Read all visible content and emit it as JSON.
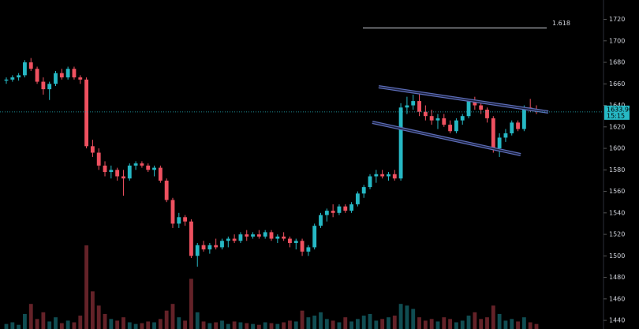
{
  "chart_data": {
    "type": "candlestick",
    "open": [
      1663,
      1664,
      1666,
      1668,
      1680,
      1674,
      1662,
      1655,
      1660,
      1670,
      1666,
      1674,
      1666,
      1664,
      1602,
      1596,
      1584,
      1578,
      1580,
      1574,
      1572,
      1584,
      1586,
      1584,
      1580,
      1582,
      1570,
      1552,
      1530,
      1536,
      1532,
      1500,
      1510,
      1506,
      1510,
      1508,
      1514,
      1516,
      1514,
      1520,
      1518,
      1520,
      1518,
      1522,
      1516,
      1518,
      1516,
      1512,
      1514,
      1504,
      1508,
      1528,
      1538,
      1542,
      1540,
      1546,
      1542,
      1548,
      1558,
      1564,
      1574,
      1576,
      1574,
      1576,
      1572,
      1638,
      1640,
      1644,
      1634,
      1630,
      1626,
      1628,
      1622,
      1616,
      1626,
      1630,
      1644,
      1640,
      1636,
      1628,
      1600,
      1610,
      1614,
      1624,
      1618,
      1638,
      1636
    ],
    "high": [
      1666,
      1668,
      1670,
      1682,
      1684,
      1676,
      1666,
      1662,
      1672,
      1674,
      1676,
      1676,
      1668,
      1666,
      1608,
      1600,
      1588,
      1584,
      1582,
      1580,
      1586,
      1588,
      1588,
      1586,
      1584,
      1584,
      1572,
      1554,
      1540,
      1538,
      1534,
      1512,
      1514,
      1512,
      1516,
      1516,
      1518,
      1520,
      1522,
      1524,
      1522,
      1524,
      1524,
      1524,
      1520,
      1522,
      1518,
      1516,
      1516,
      1510,
      1530,
      1540,
      1544,
      1548,
      1548,
      1548,
      1550,
      1560,
      1566,
      1576,
      1580,
      1580,
      1578,
      1580,
      1642,
      1648,
      1650,
      1652,
      1640,
      1636,
      1632,
      1632,
      1626,
      1628,
      1632,
      1646,
      1648,
      1644,
      1638,
      1630,
      1614,
      1618,
      1626,
      1626,
      1640,
      1646,
      1640
    ],
    "low": [
      1660,
      1662,
      1663,
      1666,
      1672,
      1660,
      1650,
      1645,
      1658,
      1664,
      1664,
      1664,
      1660,
      1600,
      1592,
      1580,
      1574,
      1572,
      1570,
      1556,
      1570,
      1580,
      1582,
      1578,
      1574,
      1568,
      1550,
      1526,
      1526,
      1528,
      1498,
      1490,
      1504,
      1502,
      1506,
      1506,
      1508,
      1512,
      1512,
      1514,
      1516,
      1516,
      1516,
      1514,
      1512,
      1514,
      1508,
      1506,
      1500,
      1500,
      1506,
      1526,
      1532,
      1536,
      1538,
      1540,
      1540,
      1546,
      1554,
      1562,
      1568,
      1572,
      1570,
      1570,
      1570,
      1632,
      1636,
      1630,
      1626,
      1622,
      1618,
      1620,
      1614,
      1614,
      1622,
      1628,
      1636,
      1632,
      1624,
      1596,
      1592,
      1606,
      1612,
      1616,
      1616,
      1634,
      1632
    ],
    "close": [
      1664,
      1666,
      1668,
      1680,
      1674,
      1662,
      1655,
      1660,
      1670,
      1666,
      1674,
      1666,
      1664,
      1602,
      1596,
      1584,
      1578,
      1580,
      1574,
      1572,
      1584,
      1586,
      1584,
      1580,
      1582,
      1570,
      1552,
      1530,
      1536,
      1532,
      1500,
      1510,
      1506,
      1510,
      1508,
      1514,
      1516,
      1514,
      1520,
      1518,
      1520,
      1518,
      1522,
      1516,
      1518,
      1516,
      1512,
      1514,
      1504,
      1508,
      1528,
      1538,
      1542,
      1540,
      1546,
      1542,
      1548,
      1558,
      1564,
      1574,
      1576,
      1574,
      1576,
      1572,
      1638,
      1640,
      1644,
      1634,
      1630,
      1626,
      1628,
      1622,
      1616,
      1626,
      1630,
      1644,
      1640,
      1636,
      1628,
      1600,
      1610,
      1614,
      1624,
      1618,
      1638,
      1636,
      1634
    ],
    "volume": [
      6,
      8,
      5,
      18,
      30,
      12,
      20,
      9,
      14,
      7,
      10,
      8,
      16,
      100,
      45,
      28,
      18,
      12,
      10,
      14,
      8,
      6,
      7,
      9,
      8,
      12,
      22,
      30,
      14,
      10,
      60,
      20,
      9,
      7,
      8,
      10,
      6,
      9,
      8,
      7,
      6,
      5,
      8,
      7,
      6,
      8,
      10,
      9,
      22,
      14,
      16,
      20,
      12,
      10,
      8,
      14,
      9,
      12,
      16,
      18,
      10,
      12,
      14,
      16,
      30,
      28,
      24,
      14,
      10,
      12,
      9,
      14,
      12,
      8,
      10,
      16,
      20,
      12,
      14,
      28,
      18,
      10,
      12,
      9,
      14,
      8,
      6
    ],
    "up_color": "#26b8c4",
    "down_color": "#ef5160",
    "ylim": [
      1432,
      1738
    ],
    "yticks": [
      1440,
      1460,
      1480,
      1500,
      1520,
      1540,
      1560,
      1580,
      1600,
      1620,
      1640,
      1660,
      1680,
      1700,
      1720
    ],
    "fib_level": {
      "value": 1712,
      "label": "1.618"
    },
    "last_price": {
      "value": 1633.9,
      "label": "1633.90"
    },
    "countdown": "15:15"
  }
}
